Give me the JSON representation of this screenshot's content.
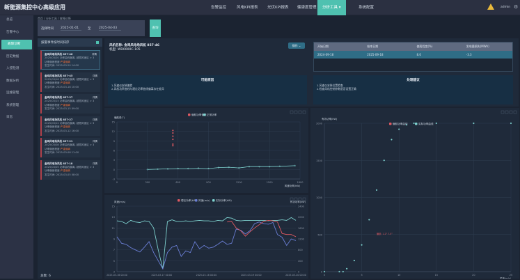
{
  "app": {
    "title": "新能源集控中心高级应用",
    "user": "admin"
  },
  "nav": [
    {
      "label": "告警监控"
    },
    {
      "label": "风电KPI报表"
    },
    {
      "label": "光伏KPI报表"
    },
    {
      "label": "健康度管理"
    },
    {
      "label": "分析工具 ▾",
      "active": true
    },
    {
      "label": "系统配置"
    }
  ],
  "sidebar": [
    {
      "label": "总览"
    },
    {
      "label": "告警中心"
    },
    {
      "label": "故障诊断",
      "active": true
    },
    {
      "label": "历史数据"
    },
    {
      "label": "入侵检测"
    },
    {
      "label": "数据分析"
    },
    {
      "label": "运维管理"
    },
    {
      "label": "系统管理"
    },
    {
      "label": "日志"
    }
  ],
  "breadcrumb": [
    "首页",
    "分析工具",
    "故障诊断"
  ],
  "filter": {
    "label": "选择时间",
    "start": "2025-01-01",
    "sep": "至",
    "end": "2025-04-03",
    "query_label": "查询"
  },
  "list": {
    "header": "报警事件按时间排序",
    "total": "总数: 6",
    "items": [
      {
        "title": "金鸡风电场风机 857-46",
        "badge": "详情",
        "l1": "2025/03/20 功率曲线偏离, 超限风速区 > 3",
        "l2": "功率偏差程度:",
        "warn": "严重偏离",
        "l3": "发生时间: 2025-03-20 14:00"
      },
      {
        "title": "金鸡风电场风机 857-45",
        "badge": "详情",
        "l1": "2025/03/18 功率曲线偏离, 超限风速区 > 3",
        "l2": "功率偏差程度:",
        "warn": "严重偏离",
        "l3": "发生时间: 2025-03-18 10:00"
      },
      {
        "title": "金鸡风电场风机 857-37",
        "badge": "详情",
        "l1": "2025/03/15 功率曲线偏离, 超限风速区 > 3",
        "l2": "功率偏差程度:",
        "warn": "严重偏离",
        "l3": "发生时间: 2025-03-15 09:00"
      },
      {
        "title": "金鸡风电场风机 857-27",
        "badge": "详情",
        "l1": "2025/03/12 功率曲线偏离, 超限风速区 > 3",
        "l2": "功率偏差程度:",
        "warn": "严重偏离",
        "l3": "发生时间: 2025-03-12 16:00"
      },
      {
        "title": "金鸡风电场风机 857-21",
        "badge": "详情",
        "l1": "2025/03/08 功率曲线偏离, 超限风速区 > 3",
        "l2": "功率偏差程度:",
        "warn": "严重偏离",
        "l3": "发生时间: 2025-03-08 11:00"
      },
      {
        "title": "金鸡风电场风机 857-18",
        "badge": "详情",
        "l1": "2025/03/05 功率曲线偏离, 超限风速区 > 3",
        "l2": "功率偏差程度:",
        "warn": "严重偏离",
        "l3": "发生时间: 2025-03-05 08:00"
      }
    ]
  },
  "detail": {
    "title": "风机名称: 金鸡风电场风机 857-46",
    "model": "机型: WD0000C-105",
    "action": "操作 ⌄",
    "table": {
      "headers": [
        "开始日期",
        "结束日期",
        "偏离程度(%)",
        "发电量损失(MWh)"
      ],
      "rows": [
        [
          "2024-09-18",
          "2025-09-18",
          "8.0",
          "-3.3"
        ]
      ]
    },
    "cause": {
      "title": "可能原因",
      "lines": [
        "1.风速仪安装偏差",
        "2.风机功率曲线与理论功率曲线偏离存在差异"
      ]
    },
    "advice": {
      "title": "处理建议",
      "lines": [
        "1.风速仪安装位置检查",
        "2.检查风机控制参数是否设置正确"
      ]
    }
  },
  "colors": {
    "accent": "#4fc1b0",
    "red": "#e05a63",
    "blue": "#6b7fd6",
    "teal": "#7fd3d0"
  },
  "chart_data": [
    {
      "type": "scatter",
      "ylabel": "偏航角(°)",
      "xlabel": "风速功率(kW)",
      "legend": [
        "偏航功率偏差",
        "正常功率"
      ],
      "xlim": [
        0,
        1800
      ],
      "ylim": [
        -3,
        15
      ],
      "xticks": [
        0,
        300,
        600,
        900,
        1200,
        1500,
        1800
      ],
      "yticks": [
        -3,
        0,
        3,
        6,
        9,
        12,
        15
      ],
      "series": [
        {
          "name": "偏航功率偏差",
          "color": "#e05a63",
          "points": [
            [
              550,
              7.5
            ],
            [
              550,
              8
            ],
            [
              550,
              9.5
            ],
            [
              550,
              10.5
            ],
            [
              550,
              11.5
            ],
            [
              550,
              12.3
            ]
          ]
        },
        {
          "name": "正常功率",
          "color": "#7fd3d0",
          "line": true,
          "points": [
            [
              300,
              0
            ],
            [
              400,
              0.1
            ],
            [
              500,
              0.2
            ],
            [
              600,
              0.3
            ],
            [
              700,
              0.3
            ],
            [
              800,
              0.4
            ],
            [
              900,
              0.3
            ],
            [
              1000,
              0.6
            ],
            [
              1100,
              0.7
            ],
            [
              1200,
              0.5
            ],
            [
              1300,
              0.9
            ],
            [
              1400,
              0.9
            ],
            [
              1500,
              0.9
            ],
            [
              1600,
              1
            ],
            [
              1750,
              1.2
            ]
          ]
        }
      ]
    },
    {
      "type": "line",
      "ylabel": "风速(m/s)",
      "y2label": "有功功率(kW)",
      "legend": [
        "理论功率(kW)",
        "风速(m/s)",
        "实际功率(kW)"
      ],
      "ylim": [
        3,
        15
      ],
      "yticks": [
        3,
        5,
        7,
        9,
        11,
        13,
        15
      ],
      "y2ticks": [
        0,
        400,
        800,
        1200,
        1600,
        2000,
        2400
      ],
      "xlabels": [
        "2025-03-16 00:00",
        "2025-03-17 00:00",
        "2025-03-18 00:00",
        "2025-03-19 00:00",
        "2025-03-20 00:00"
      ],
      "series": [
        {
          "name": "实际功率(kW)",
          "color": "#7fd3d0",
          "values": [
            12.3,
            12.2,
            11.8,
            12.4,
            12.1,
            12,
            12.3,
            12.2,
            11,
            7,
            3.5,
            12.2,
            12.5,
            12.2,
            12.2,
            12.3,
            12.2,
            12.3,
            12.4,
            12.3,
            12.3,
            12.2,
            12.4,
            12.3,
            12.9,
            12.8,
            12.4,
            12.3,
            12.4,
            12.4,
            12.4,
            12.4,
            12.4,
            12.3,
            12.4,
            12.4,
            12.5,
            12.4,
            12.9,
            12.4
          ]
        },
        {
          "name": "风速(m/s)",
          "color": "#6b7fd6",
          "values": [
            9.4,
            8.2,
            8,
            7.4,
            7,
            6.6,
            7.5,
            8.5,
            6.5,
            5,
            3.5,
            6.5,
            7.5,
            7.8,
            5.8,
            6.8,
            6.5,
            8.5,
            7.2,
            7.8,
            7.3,
            7.5,
            8,
            8.6,
            8,
            8.2,
            10.8,
            10.6,
            9.9,
            10.5,
            11.8,
            12.1,
            11.8,
            11.7,
            12,
            9.8,
            9.3,
            7.8,
            9,
            8.7
          ]
        },
        {
          "name": "理论功率(kW)",
          "color": "#e05a63",
          "values": [
            null,
            null,
            null,
            null,
            null,
            null,
            null,
            null,
            null,
            null,
            null,
            null,
            null,
            null,
            null,
            null,
            null,
            null,
            null,
            null,
            null,
            null,
            null,
            null,
            12.1,
            12.2,
            11,
            10.5,
            9.5,
            10.3,
            11,
            11.6,
            12.2,
            12.4,
            12.3,
            12.1,
            10,
            9.8,
            9.8,
            9.4
          ]
        }
      ]
    },
    {
      "type": "line",
      "ylabel": "有功功率(kW)",
      "xlabel": "风速(m/s)",
      "legend": [
        "偏航功率曲线",
        "实际功率曲线"
      ],
      "xlim": [
        0,
        25
      ],
      "ylim": [
        0,
        2000
      ],
      "xticks": [
        0,
        5,
        10,
        15,
        20,
        25
      ],
      "yticks": [
        0,
        500,
        1000,
        1500,
        2000
      ],
      "annotation": "偏航: 1.2° 7.5°",
      "series": [
        {
          "name": "实际功率曲线",
          "color": "#7fd3d0",
          "points": [
            [
              0,
              0
            ],
            [
              2,
              0
            ],
            [
              2.5,
              0
            ],
            [
              3,
              40
            ],
            [
              4,
              150
            ],
            [
              5,
              360
            ],
            [
              6,
              700
            ],
            [
              7,
              1100
            ],
            [
              8,
              1500
            ],
            [
              9,
              1780
            ],
            [
              10,
              1920
            ],
            [
              11,
              1980
            ],
            [
              12,
              2000
            ],
            [
              15,
              2000
            ],
            [
              20,
              2000
            ],
            [
              25,
              2000
            ]
          ]
        }
      ]
    }
  ]
}
